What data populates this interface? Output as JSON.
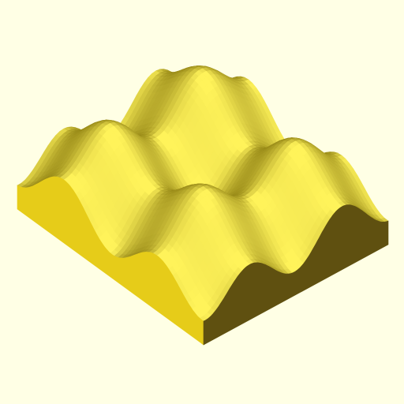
{
  "colors": {
    "background": "#ffffe5",
    "side_left": "#e6cc19",
    "side_right": "#5f5010",
    "surface_base": "#f2e030",
    "surface_highlight": "#fff35a",
    "surface_shadow": "#8c7d10"
  }
}
